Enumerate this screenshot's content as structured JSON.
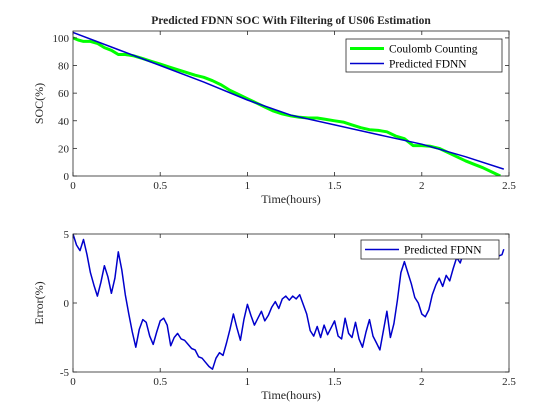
{
  "chart_data": [
    {
      "type": "line",
      "title": "Predicted FDNN SOC With Filtering of US06 Estimation",
      "xlabel": "Time(hours)",
      "ylabel": "SOC(%)",
      "xlim": [
        0,
        2.5
      ],
      "ylim": [
        0,
        105
      ],
      "xticks": [
        0,
        0.5,
        1,
        1.5,
        2,
        2.5
      ],
      "xtick_labels": [
        "0",
        "0.5",
        "1",
        "1.5",
        "2",
        "2.5"
      ],
      "yticks": [
        0,
        20,
        40,
        60,
        80,
        100
      ],
      "ytick_labels": [
        "0",
        "20",
        "40",
        "60",
        "80",
        "100"
      ],
      "grid": false,
      "legend_position": "top-right",
      "series": [
        {
          "name": "Coulomb Counting",
          "color": "#00ff00",
          "x": [
            0,
            0.03,
            0.06,
            0.1,
            0.14,
            0.18,
            0.22,
            0.26,
            0.3,
            0.35,
            0.4,
            0.45,
            0.5,
            0.55,
            0.6,
            0.65,
            0.7,
            0.75,
            0.8,
            0.85,
            0.9,
            0.95,
            1.0,
            1.05,
            1.1,
            1.15,
            1.2,
            1.25,
            1.3,
            1.35,
            1.4,
            1.45,
            1.5,
            1.55,
            1.6,
            1.65,
            1.7,
            1.75,
            1.8,
            1.85,
            1.9,
            1.95,
            2.0,
            2.05,
            2.1,
            2.15,
            2.2,
            2.25,
            2.3,
            2.35,
            2.4,
            2.45
          ],
          "y": [
            100,
            98.5,
            97.5,
            97.5,
            96,
            93,
            91,
            88,
            88,
            87,
            85,
            83,
            81,
            79,
            77,
            75,
            73,
            71.5,
            69,
            66,
            62,
            59,
            56,
            53,
            50,
            47,
            45,
            43.5,
            42.5,
            42,
            42,
            41,
            40,
            39,
            37,
            35,
            33.5,
            33,
            32,
            29,
            27,
            22,
            22,
            21.5,
            20,
            17,
            14,
            11,
            8.5,
            6,
            3,
            0
          ]
        },
        {
          "name": "Predicted FDNN",
          "color": "#0000cc",
          "x": [
            0,
            0.25,
            0.5,
            0.75,
            1.0,
            1.25,
            1.5,
            1.75,
            2.0,
            2.25,
            2.47
          ],
          "y": [
            104,
            92,
            80,
            68,
            55,
            44,
            37,
            30,
            23,
            14,
            5
          ]
        }
      ]
    },
    {
      "type": "line",
      "title": "",
      "xlabel": "Time(hours)",
      "ylabel": "Error(%)",
      "xlim": [
        0,
        2.5
      ],
      "ylim": [
        -5,
        5
      ],
      "xticks": [
        0,
        0.5,
        1,
        1.5,
        2,
        2.5
      ],
      "xtick_labels": [
        "0",
        "0.5",
        "1",
        "1.5",
        "2",
        "2.5"
      ],
      "yticks": [
        -5,
        0,
        5
      ],
      "ytick_labels": [
        "-5",
        "0",
        "5"
      ],
      "grid": false,
      "legend_position": "top-right",
      "series": [
        {
          "name": "Predicted FDNN",
          "color": "#0000cc",
          "x": [
            0,
            0.02,
            0.04,
            0.06,
            0.08,
            0.1,
            0.12,
            0.14,
            0.16,
            0.18,
            0.2,
            0.22,
            0.24,
            0.26,
            0.28,
            0.3,
            0.32,
            0.34,
            0.36,
            0.38,
            0.4,
            0.42,
            0.44,
            0.46,
            0.48,
            0.5,
            0.52,
            0.54,
            0.56,
            0.58,
            0.6,
            0.62,
            0.64,
            0.66,
            0.68,
            0.7,
            0.72,
            0.74,
            0.76,
            0.78,
            0.8,
            0.82,
            0.84,
            0.86,
            0.88,
            0.9,
            0.92,
            0.94,
            0.96,
            0.98,
            1.0,
            1.02,
            1.04,
            1.06,
            1.08,
            1.1,
            1.12,
            1.14,
            1.16,
            1.18,
            1.2,
            1.22,
            1.24,
            1.26,
            1.28,
            1.3,
            1.32,
            1.34,
            1.36,
            1.38,
            1.4,
            1.42,
            1.44,
            1.46,
            1.48,
            1.5,
            1.52,
            1.54,
            1.56,
            1.58,
            1.6,
            1.62,
            1.64,
            1.66,
            1.68,
            1.7,
            1.72,
            1.74,
            1.76,
            1.78,
            1.8,
            1.82,
            1.84,
            1.86,
            1.88,
            1.9,
            1.92,
            1.94,
            1.96,
            1.98,
            2.0,
            2.02,
            2.04,
            2.06,
            2.08,
            2.1,
            2.12,
            2.14,
            2.16,
            2.18,
            2.2,
            2.22,
            2.24,
            2.26,
            2.28,
            2.3,
            2.32,
            2.34,
            2.36,
            2.38,
            2.4,
            2.42,
            2.44,
            2.46,
            2.47
          ],
          "y": [
            5,
            4.2,
            3.8,
            4.6,
            3.5,
            2.2,
            1.3,
            0.5,
            1.5,
            2.7,
            1.9,
            0.7,
            1.8,
            3.7,
            2.4,
            0.6,
            -0.8,
            -2.1,
            -3.2,
            -1.9,
            -1.2,
            -1.4,
            -2.4,
            -3.0,
            -2.1,
            -1.3,
            -1.1,
            -1.6,
            -3.1,
            -2.5,
            -2.2,
            -2.6,
            -2.7,
            -3.0,
            -3.3,
            -3.4,
            -3.9,
            -4.0,
            -4.3,
            -4.6,
            -4.8,
            -4.0,
            -3.6,
            -3.8,
            -2.9,
            -1.9,
            -0.8,
            -1.8,
            -2.7,
            -1.2,
            -0.1,
            -0.9,
            -1.6,
            -1.1,
            -0.6,
            -1.3,
            -0.9,
            -0.3,
            0.1,
            -0.4,
            0.3,
            0.5,
            0.2,
            0.5,
            0.3,
            0.6,
            -0.1,
            -0.8,
            -2.0,
            -2.4,
            -1.7,
            -2.5,
            -1.6,
            -2.3,
            -1.8,
            -1.3,
            -2.4,
            -2.6,
            -1.1,
            -2.2,
            -2.5,
            -1.4,
            -2.6,
            -3.2,
            -2.1,
            -1.2,
            -2.4,
            -2.9,
            -3.4,
            -2.0,
            -0.6,
            -2.5,
            -1.5,
            0.2,
            2.2,
            3.0,
            2.2,
            1.4,
            0.4,
            0.0,
            -0.8,
            -1.0,
            -0.5,
            0.6,
            1.3,
            1.8,
            1.2,
            2.0,
            1.6,
            2.5,
            3.3,
            2.9,
            3.7,
            3.3,
            3.8,
            4.2,
            3.6,
            4.3,
            4.0,
            4.4,
            4.2,
            3.8,
            3.4,
            3.5,
            3.9
          ]
        }
      ]
    }
  ]
}
